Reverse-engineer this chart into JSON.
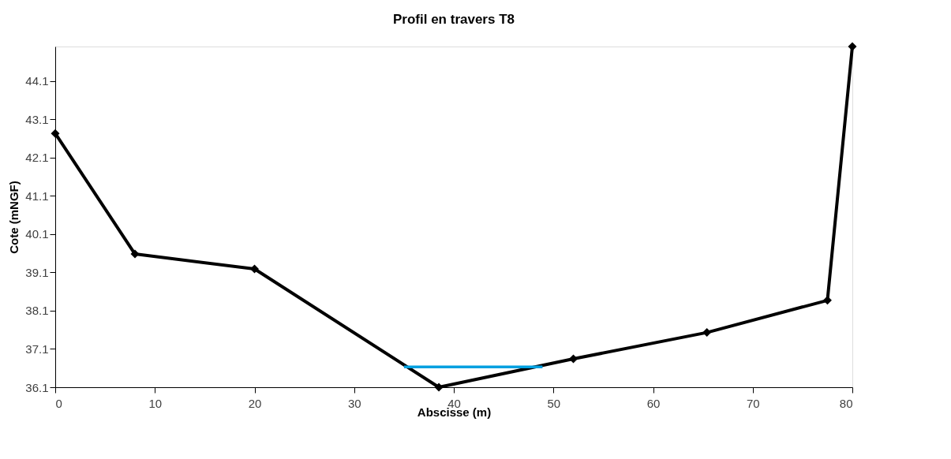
{
  "chart_data": {
    "type": "line",
    "title": "Profil en travers T8",
    "xlabel": "Abscisse (m)",
    "ylabel": "Cote (mNGF)",
    "xlim": [
      0,
      80
    ],
    "xticks": [
      0,
      10,
      20,
      30,
      40,
      50,
      60,
      70,
      80
    ],
    "ylim": [
      36.1,
      45.0
    ],
    "yticks": [
      36.1,
      37.1,
      38.1,
      39.1,
      40.1,
      41.1,
      42.1,
      43.1,
      44.1
    ],
    "grid": false,
    "marker": "diamond",
    "line_style": "solid",
    "series": [
      {
        "color": "#000000",
        "x": [
          0,
          8,
          20,
          38.5,
          52,
          65.4,
          77.5,
          80
        ],
        "values": [
          42.73,
          39.58,
          39.19,
          36.1,
          36.84,
          37.53,
          38.37,
          45.0
        ]
      },
      {
        "color": "#00a0e0",
        "type": "line",
        "marker": "none",
        "x": [
          35.0,
          48.9
        ],
        "values": [
          36.63,
          36.63
        ]
      }
    ]
  }
}
